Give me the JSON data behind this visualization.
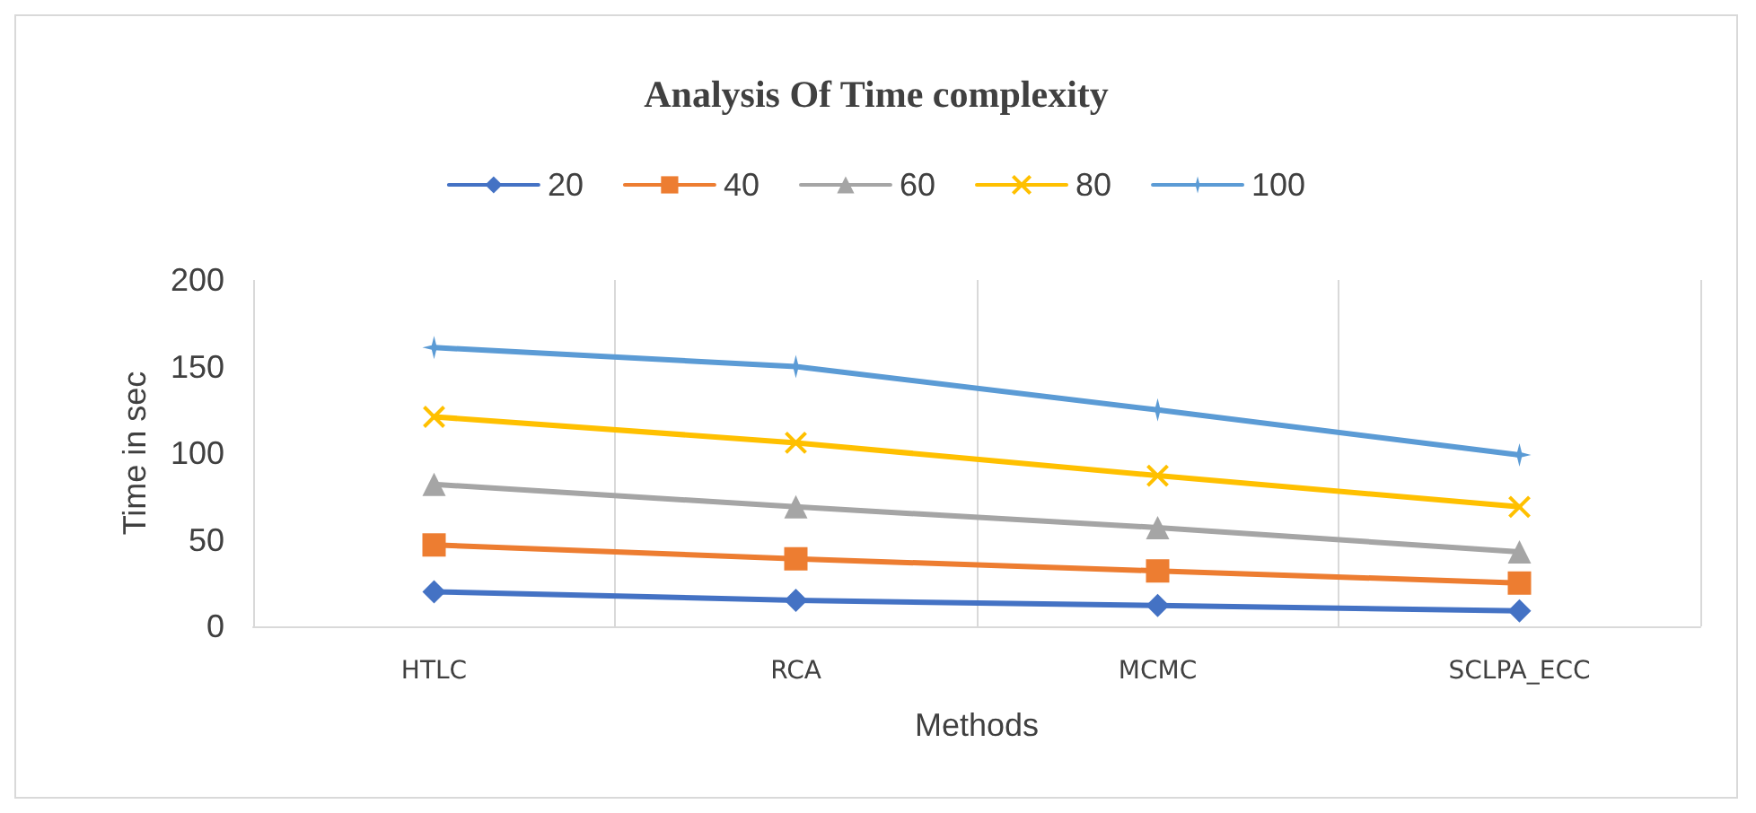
{
  "chart_data": {
    "type": "line",
    "title": "Analysis Of Time complexity",
    "xlabel": "Methods",
    "ylabel": "Time in sec",
    "categories": [
      "HTLC",
      "RCA",
      "MCMC",
      "SCLPA_ECC"
    ],
    "series": [
      {
        "name": "20",
        "color": "#4472c4",
        "marker": "diamond",
        "values": [
          20,
          15,
          12,
          9
        ]
      },
      {
        "name": "40",
        "color": "#ed7d31",
        "marker": "square",
        "values": [
          47,
          39,
          32,
          25
        ]
      },
      {
        "name": "60",
        "color": "#a5a5a5",
        "marker": "triangle",
        "values": [
          82,
          69,
          57,
          43
        ]
      },
      {
        "name": "80",
        "color": "#ffc000",
        "marker": "cross",
        "values": [
          121,
          106,
          87,
          69
        ]
      },
      {
        "name": "100",
        "color": "#5b9bd5",
        "marker": "star",
        "values": [
          161,
          150,
          125,
          99
        ]
      }
    ],
    "ylim": [
      0,
      200
    ],
    "yticks": [
      0,
      50,
      100,
      150,
      200
    ],
    "grid": "x",
    "legend": "top",
    "line_style": "solid"
  }
}
